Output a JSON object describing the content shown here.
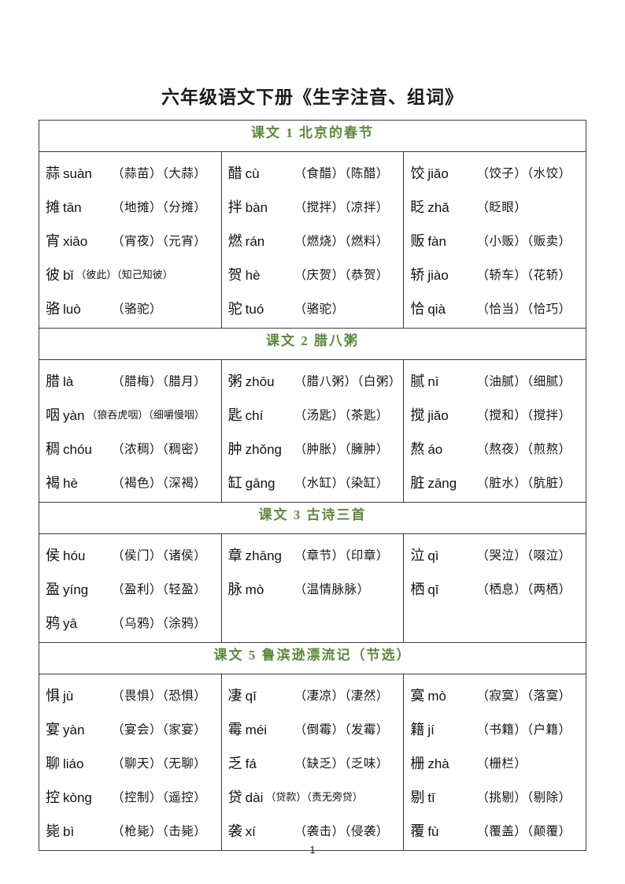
{
  "page": {
    "title": "六年级语文下册《生字注音、组词》",
    "page_number": "1"
  },
  "colors": {
    "header_green": "#5a8a3c",
    "border": "#3c3c3c"
  },
  "sections": [
    {
      "header": "课文 1 北京的春节",
      "columns": [
        {
          "entries": [
            {
              "char": "蒜",
              "pinyin": "suàn",
              "words": "（蒜苗）（大蒜）"
            },
            {
              "char": "摊",
              "pinyin": "tān",
              "words": "（地摊）（分摊）"
            },
            {
              "char": "宵",
              "pinyin": "xiāo",
              "words": "（宵夜）（元宵）"
            },
            {
              "char": "彼",
              "pinyin": "bǐ",
              "words": "（彼此）（知己知彼）"
            },
            {
              "char": "骆",
              "pinyin": "luò",
              "words": "（骆驼）"
            }
          ]
        },
        {
          "entries": [
            {
              "char": "醋",
              "pinyin": "cù",
              "words": "（食醋）（陈醋）"
            },
            {
              "char": "拌",
              "pinyin": "bàn",
              "words": "（搅拌）（凉拌）"
            },
            {
              "char": "燃",
              "pinyin": "rán",
              "words": "（燃烧）（燃料）"
            },
            {
              "char": "贺",
              "pinyin": "hè",
              "words": "（庆贺）（恭贺）"
            },
            {
              "char": "驼",
              "pinyin": "tuó",
              "words": "（骆驼）"
            }
          ]
        },
        {
          "entries": [
            {
              "char": "饺",
              "pinyin": "jiǎo",
              "words": "（饺子）（水饺）"
            },
            {
              "char": "眨",
              "pinyin": "zhǎ",
              "words": "（眨眼）"
            },
            {
              "char": "贩",
              "pinyin": "fàn",
              "words": "（小贩）（贩卖）"
            },
            {
              "char": "轿",
              "pinyin": "jiào",
              "words": "（轿车）（花轿）"
            },
            {
              "char": "恰",
              "pinyin": "qià",
              "words": "（恰当）（恰巧）"
            }
          ]
        }
      ]
    },
    {
      "header": "课文 2 腊八粥",
      "columns": [
        {
          "entries": [
            {
              "char": "腊",
              "pinyin": "là",
              "words": "（腊梅）（腊月）"
            },
            {
              "char": "咽",
              "pinyin": "yàn",
              "words": "（狼吞虎咽）（细嚼慢咽）"
            },
            {
              "char": "稠",
              "pinyin": "chóu",
              "words": "（浓稠）（稠密）"
            },
            {
              "char": "褐",
              "pinyin": "hè",
              "words": "（褐色）（深褐）"
            }
          ]
        },
        {
          "entries": [
            {
              "char": "粥",
              "pinyin": "zhōu",
              "words": "（腊八粥）（白粥）"
            },
            {
              "char": "匙",
              "pinyin": "chí",
              "words": "（汤匙）（茶匙）"
            },
            {
              "char": "肿",
              "pinyin": "zhǒng",
              "words": "（肿胀）（臃肿）"
            },
            {
              "char": "缸",
              "pinyin": "gāng",
              "words": "（水缸）（染缸）"
            }
          ]
        },
        {
          "entries": [
            {
              "char": "腻",
              "pinyin": "nì",
              "words": "（油腻）（细腻）"
            },
            {
              "char": "搅",
              "pinyin": "jiǎo",
              "words": "（搅和）（搅拌）"
            },
            {
              "char": "熬",
              "pinyin": "áo",
              "words": "（熬夜）（煎熬）"
            },
            {
              "char": "脏",
              "pinyin": "zāng",
              "words": "（脏水）（肮脏）"
            }
          ]
        }
      ]
    },
    {
      "header": "课文 3 古诗三首",
      "columns": [
        {
          "entries": [
            {
              "char": "侯",
              "pinyin": "hóu",
              "words": "（侯门）（诸侯）"
            },
            {
              "char": "盈",
              "pinyin": "yíng",
              "words": "（盈利）（轻盈）"
            },
            {
              "char": "鸦",
              "pinyin": "yā",
              "words": "（乌鸦）（涂鸦）"
            }
          ]
        },
        {
          "entries": [
            {
              "char": "章",
              "pinyin": "zhāng",
              "words": "（章节）（印章）"
            },
            {
              "char": "脉",
              "pinyin": "mò",
              "words": "（温情脉脉）"
            }
          ]
        },
        {
          "entries": [
            {
              "char": "泣",
              "pinyin": "qì",
              "words": "（哭泣）（啜泣）"
            },
            {
              "char": "栖",
              "pinyin": "qī",
              "words": "（栖息）（两栖）"
            }
          ]
        }
      ]
    },
    {
      "header": "课文 5 鲁滨逊漂流记（节选）",
      "columns": [
        {
          "entries": [
            {
              "char": "惧",
              "pinyin": "jù",
              "words": "（畏惧）（恐惧）"
            },
            {
              "char": "宴",
              "pinyin": "yàn",
              "words": "（宴会）（家宴）"
            },
            {
              "char": "聊",
              "pinyin": "liáo",
              "words": "（聊天）（无聊）"
            },
            {
              "char": "控",
              "pinyin": "kòng",
              "words": "（控制）（遥控）"
            },
            {
              "char": "毙",
              "pinyin": "bì",
              "words": "（枪毙）（击毙）"
            }
          ]
        },
        {
          "entries": [
            {
              "char": "凄",
              "pinyin": "qī",
              "words": "（凄凉）（凄然）"
            },
            {
              "char": "霉",
              "pinyin": "méi",
              "words": "（倒霉）（发霉）"
            },
            {
              "char": "乏",
              "pinyin": "fá",
              "words": "（缺乏）（乏味）"
            },
            {
              "char": "贷",
              "pinyin": "dài",
              "words": "（贷款）（责无旁贷）"
            },
            {
              "char": "袭",
              "pinyin": "xí",
              "words": "（袭击）（侵袭）"
            }
          ]
        },
        {
          "entries": [
            {
              "char": "寞",
              "pinyin": "mò",
              "words": "（寂寞）（落寞）"
            },
            {
              "char": "籍",
              "pinyin": "jí",
              "words": "（书籍）（户籍）"
            },
            {
              "char": "栅",
              "pinyin": "zhà",
              "words": "（栅栏）"
            },
            {
              "char": "剔",
              "pinyin": "tī",
              "words": "（挑剔）（剔除）"
            },
            {
              "char": "覆",
              "pinyin": "fù",
              "words": "（覆盖）（颠覆）"
            }
          ]
        }
      ]
    }
  ]
}
